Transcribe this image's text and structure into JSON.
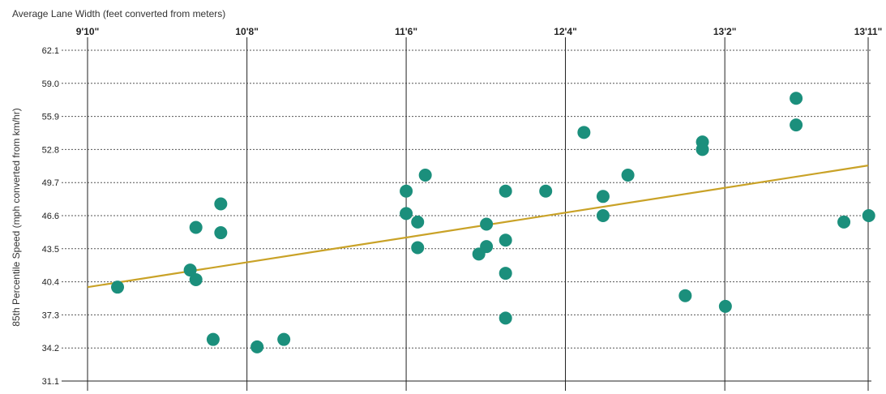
{
  "chart_data": {
    "type": "scatter",
    "title": "Average Lane Width (feet converted from meters)",
    "xlabel": "Average Lane Width (feet converted from meters)",
    "ylabel": "85th Percentile Speed (mph converted from km/hr)",
    "x_ticks": [
      {
        "label": "9'10\"",
        "value": 9.833
      },
      {
        "label": "10'8\"",
        "value": 10.667
      },
      {
        "label": "11'6\"",
        "value": 11.5
      },
      {
        "label": "12'4\"",
        "value": 12.333
      },
      {
        "label": "13'2\"",
        "value": 13.167
      },
      {
        "label": "13'11\"",
        "value": 13.917
      }
    ],
    "y_ticks": [
      "62.1",
      "59.0",
      "55.9",
      "52.8",
      "49.7",
      "46.6",
      "43.5",
      "40.4",
      "37.3",
      "34.2",
      "31.1"
    ],
    "xlim": [
      9.833,
      13.917
    ],
    "ylim": [
      31.1,
      62.1
    ],
    "grid": true,
    "colors": {
      "points": "#1b8f7c",
      "trend": "#c9a227",
      "grid": "#555555"
    },
    "trend_line": {
      "x": [
        9.833,
        13.917
      ],
      "y": [
        39.9,
        51.3
      ]
    },
    "points": [
      {
        "x": 9.99,
        "y": 39.9
      },
      {
        "x": 10.37,
        "y": 41.5
      },
      {
        "x": 10.4,
        "y": 45.5
      },
      {
        "x": 10.4,
        "y": 40.6
      },
      {
        "x": 10.49,
        "y": 35.0
      },
      {
        "x": 10.53,
        "y": 47.7
      },
      {
        "x": 10.53,
        "y": 45.0
      },
      {
        "x": 10.72,
        "y": 34.3
      },
      {
        "x": 10.86,
        "y": 35.0
      },
      {
        "x": 11.5,
        "y": 48.9
      },
      {
        "x": 11.5,
        "y": 46.8
      },
      {
        "x": 11.56,
        "y": 46.0
      },
      {
        "x": 11.56,
        "y": 43.6
      },
      {
        "x": 11.6,
        "y": 50.4
      },
      {
        "x": 11.88,
        "y": 43.0
      },
      {
        "x": 11.92,
        "y": 45.8
      },
      {
        "x": 11.92,
        "y": 43.7
      },
      {
        "x": 12.02,
        "y": 48.9
      },
      {
        "x": 12.02,
        "y": 44.3
      },
      {
        "x": 12.02,
        "y": 41.2
      },
      {
        "x": 12.02,
        "y": 37.0
      },
      {
        "x": 12.23,
        "y": 48.9
      },
      {
        "x": 12.43,
        "y": 54.4
      },
      {
        "x": 12.53,
        "y": 48.4
      },
      {
        "x": 12.53,
        "y": 46.6
      },
      {
        "x": 12.66,
        "y": 50.4
      },
      {
        "x": 12.96,
        "y": 39.1
      },
      {
        "x": 13.05,
        "y": 53.5
      },
      {
        "x": 13.05,
        "y": 52.8
      },
      {
        "x": 13.17,
        "y": 38.1
      },
      {
        "x": 13.54,
        "y": 57.6
      },
      {
        "x": 13.54,
        "y": 55.1
      },
      {
        "x": 13.79,
        "y": 46.0
      },
      {
        "x": 13.92,
        "y": 46.6
      }
    ]
  }
}
